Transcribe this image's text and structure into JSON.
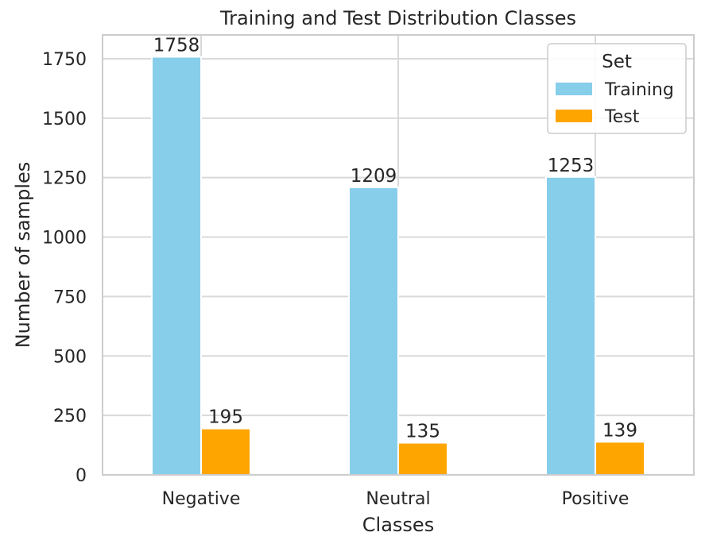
{
  "chart_data": {
    "type": "bar",
    "title": "Training and Test Distribution Classes",
    "xlabel": "Classes",
    "ylabel": "Number of samples",
    "categories": [
      "Negative",
      "Neutral",
      "Positive"
    ],
    "series": [
      {
        "name": "Training",
        "values": [
          1758,
          1209,
          1253
        ],
        "color": "#87ceeb"
      },
      {
        "name": "Test",
        "values": [
          195,
          135,
          139
        ],
        "color": "#ffa500"
      }
    ],
    "ylim": [
      0,
      1850
    ],
    "yticks": [
      0,
      250,
      500,
      750,
      1000,
      1250,
      1500,
      1750
    ],
    "grid": true,
    "legend": {
      "title": "Set",
      "placement": "top-right"
    }
  }
}
